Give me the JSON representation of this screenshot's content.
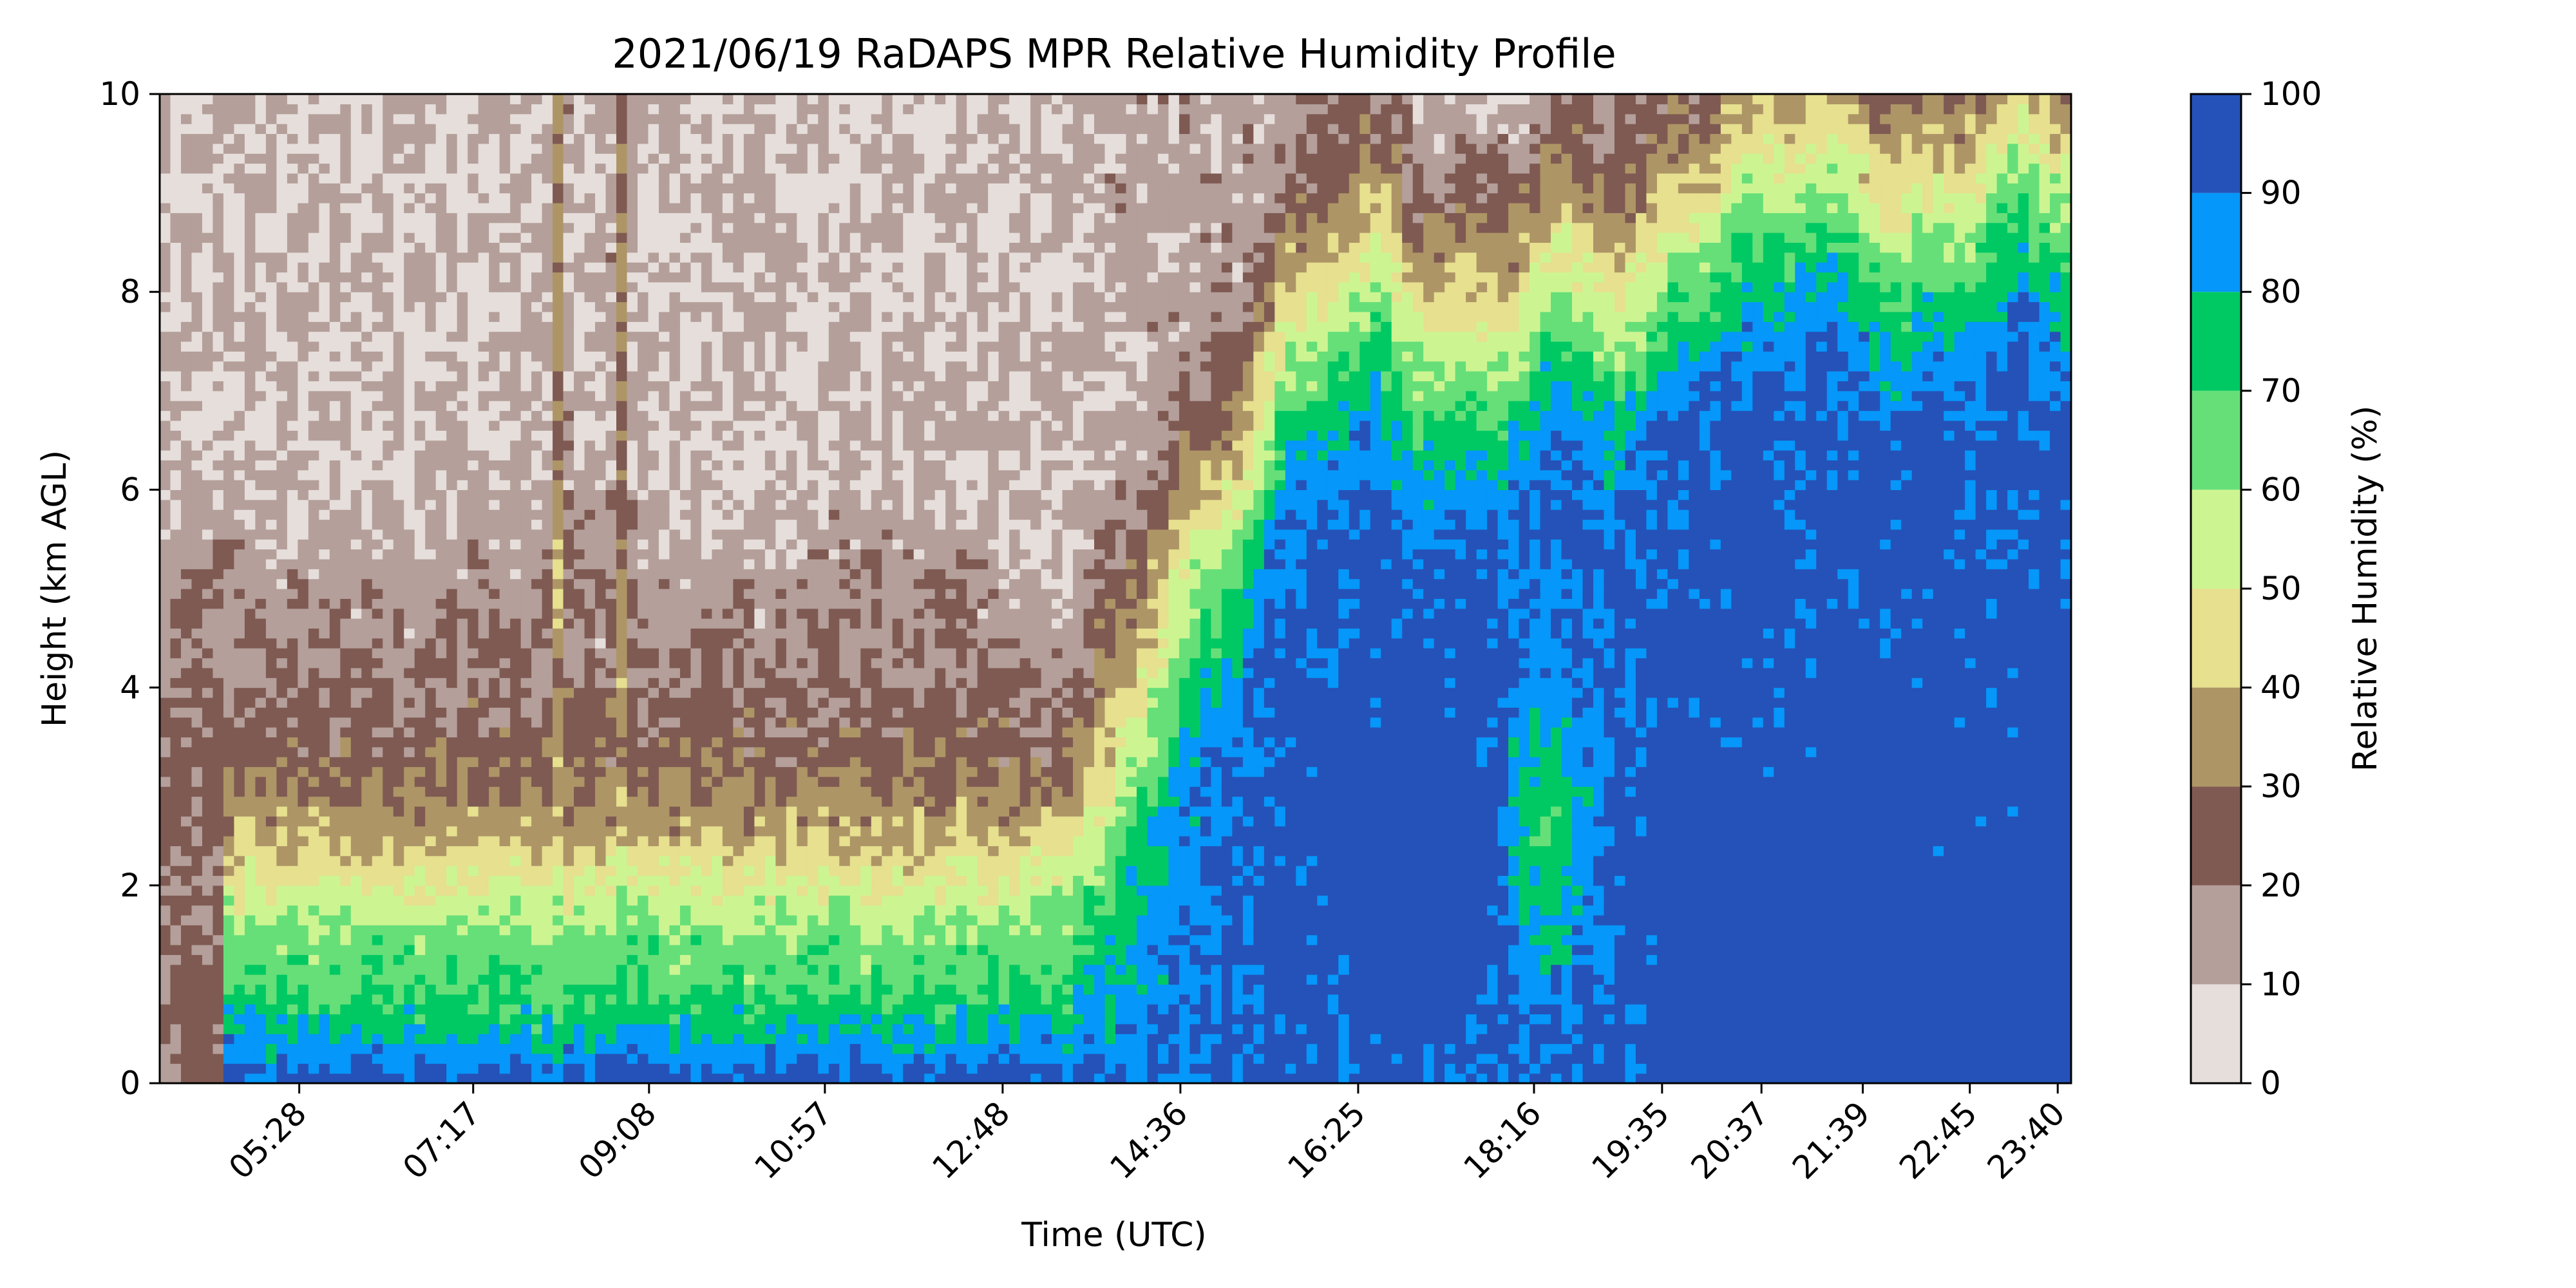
{
  "chart_data": {
    "type": "heatmap",
    "title": "2021/06/19 RaDAPS MPR Relative Humidity Profile",
    "xlabel": "Time (UTC)",
    "ylabel": "Height (km AGL)",
    "x_ticks": [
      "05:28",
      "07:17",
      "09:08",
      "10:57",
      "12:48",
      "14:36",
      "16:25",
      "18:16",
      "19:35",
      "20:37",
      "21:39",
      "22:45",
      "23:40"
    ],
    "y_ticks": [
      0,
      2,
      4,
      6,
      8,
      10
    ],
    "ylim": [
      0,
      10
    ],
    "colorbar": {
      "label": "Relative Humidity (%)",
      "ticks": [
        0,
        10,
        20,
        30,
        40,
        50,
        60,
        70,
        80,
        90,
        100
      ],
      "levels": [
        0,
        10,
        20,
        30,
        40,
        50,
        60,
        70,
        80,
        90,
        100
      ],
      "colors": [
        "#e6dedb",
        "#b49f9a",
        "#7f5a52",
        "#ae9566",
        "#e6e08f",
        "#ccf591",
        "#66df79",
        "#00c964",
        "#0597f9",
        "#2552b8"
      ]
    },
    "grid": false,
    "legend": "colorbar-right"
  }
}
